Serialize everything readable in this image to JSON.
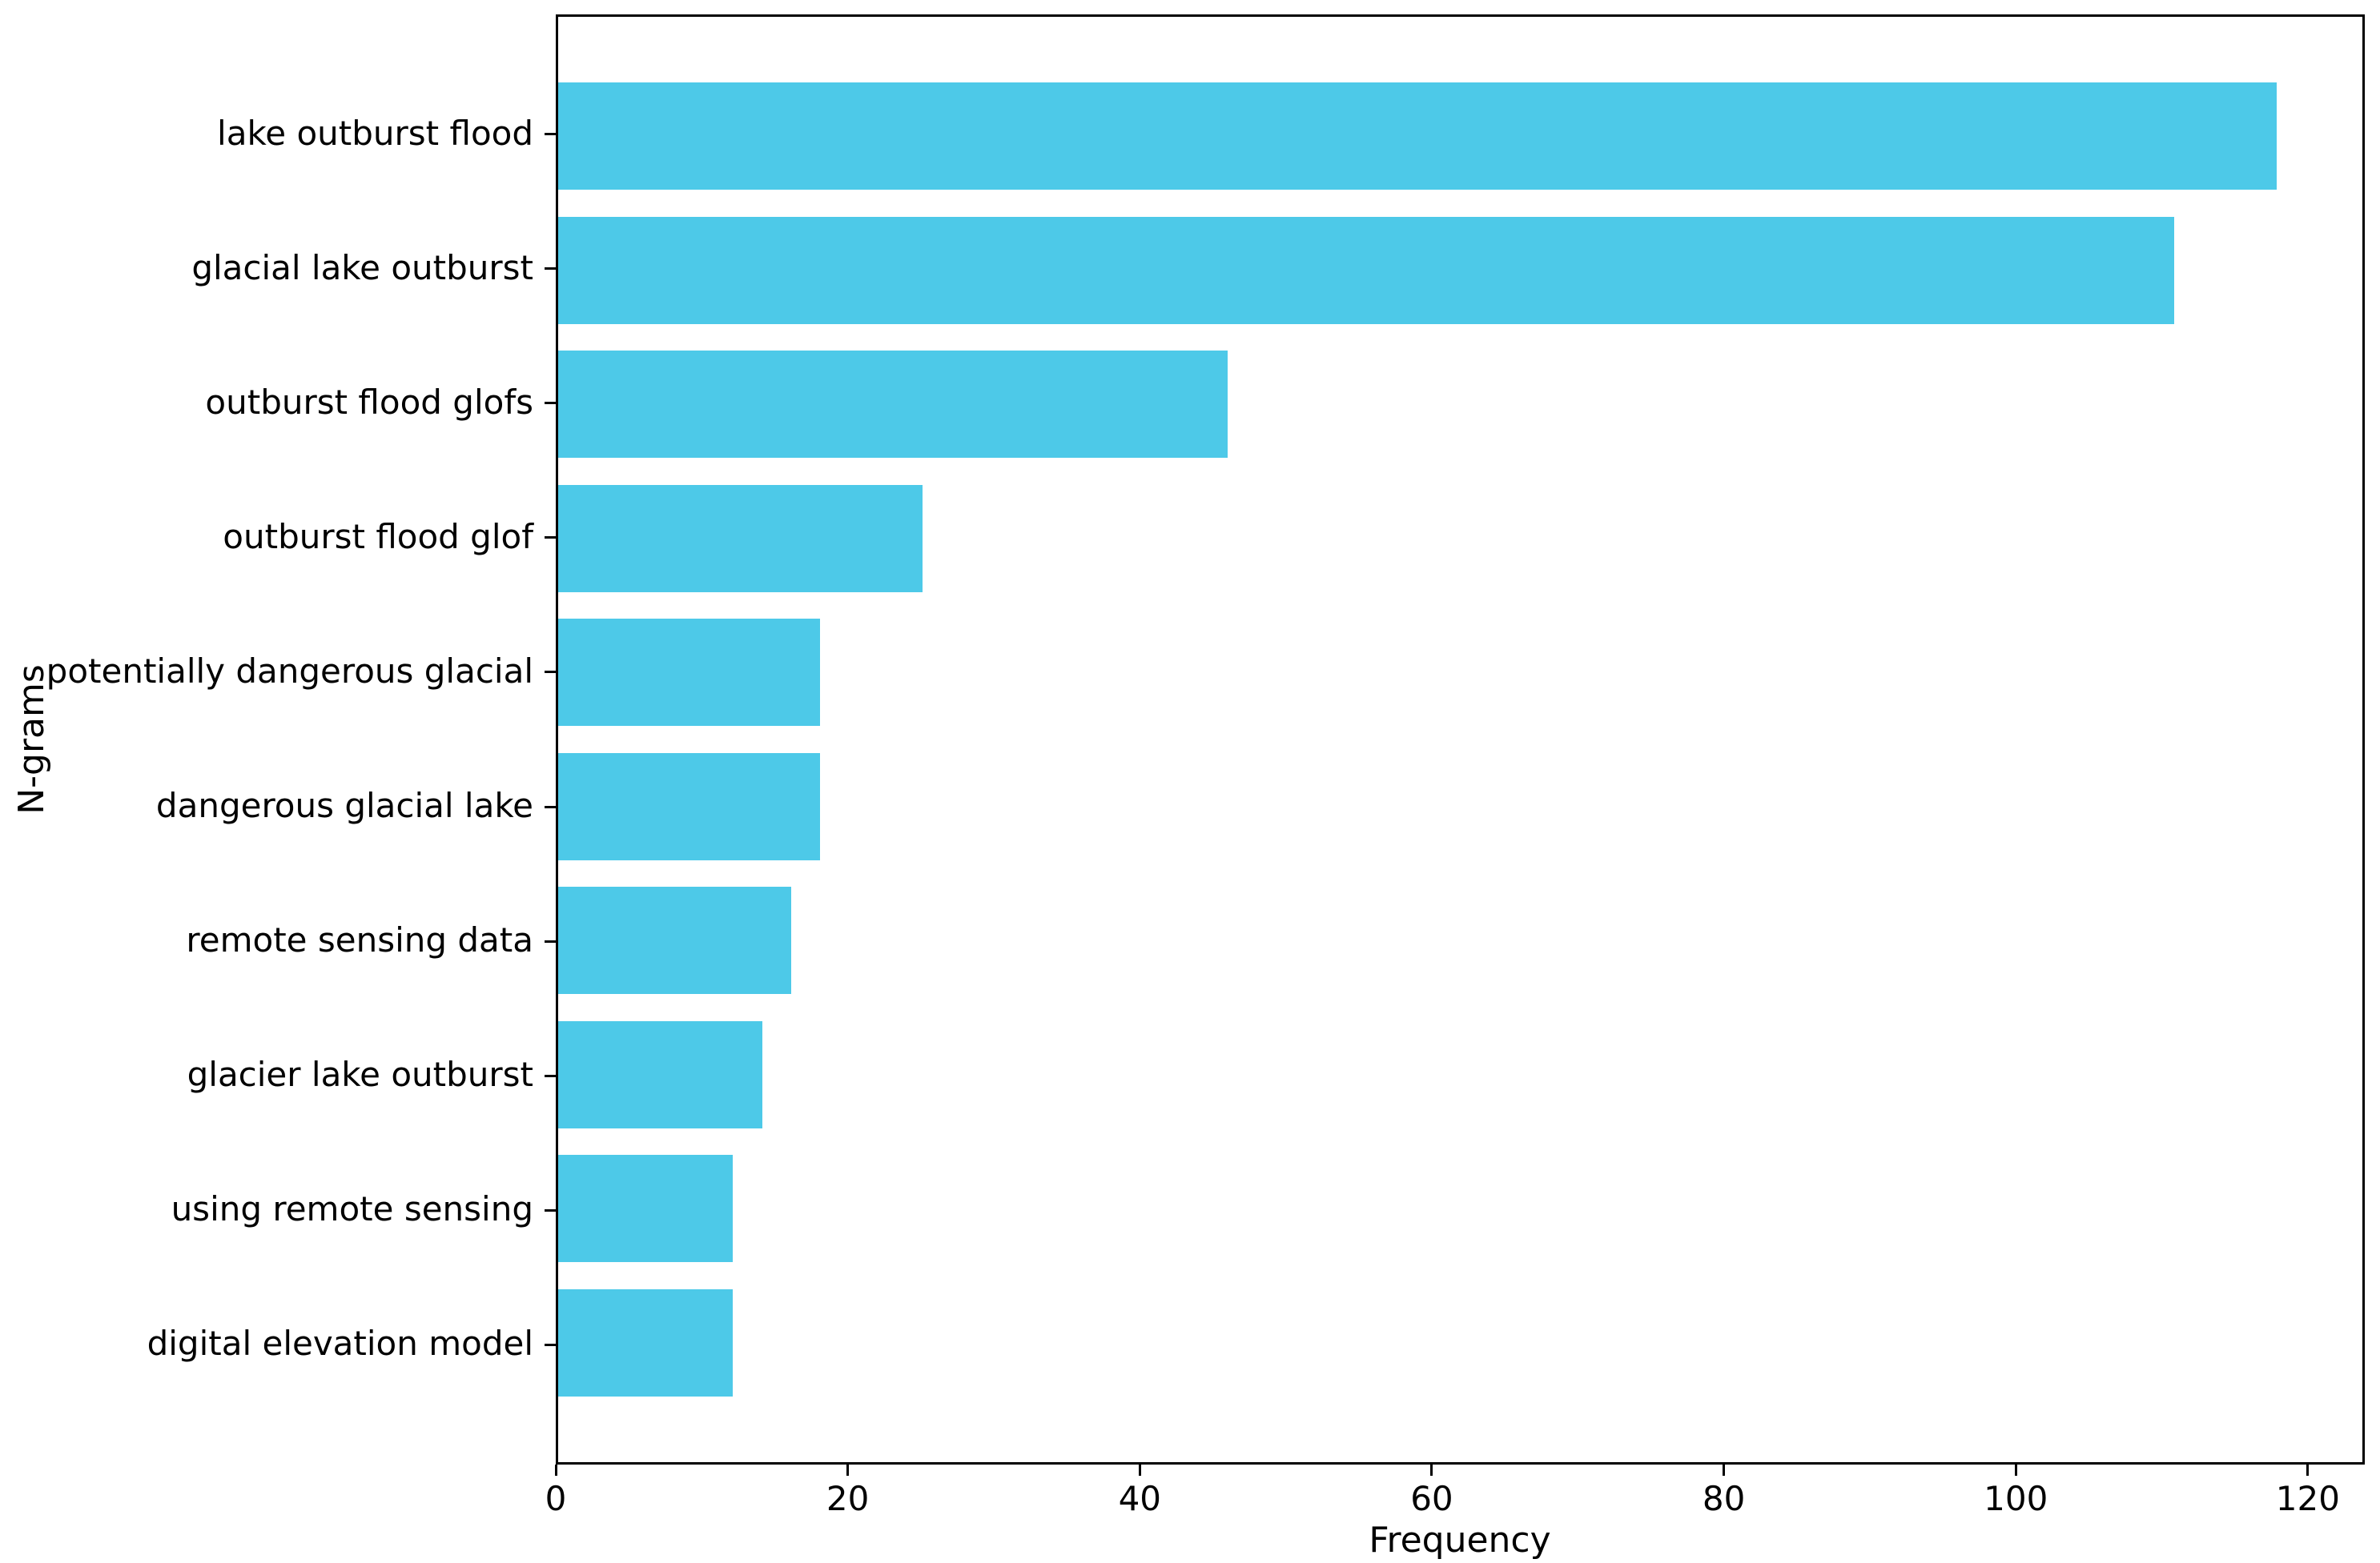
{
  "chart_data": {
    "type": "bar",
    "orientation": "horizontal",
    "title": "",
    "xlabel": "Frequency",
    "ylabel": "N-grams",
    "categories": [
      "lake outburst flood",
      "glacial lake outburst",
      "outburst flood glofs",
      "outburst flood glof",
      "potentially dangerous glacial",
      "dangerous glacial lake",
      "remote sensing data",
      "glacier lake outburst",
      "using remote sensing",
      "digital elevation model"
    ],
    "values": [
      118,
      111,
      46,
      25,
      18,
      18,
      16,
      14,
      12,
      12
    ],
    "xticks": [
      0,
      20,
      40,
      60,
      80,
      100,
      120
    ],
    "xlim": [
      0,
      123.9
    ],
    "bar_color": "#4dc9e8",
    "axis_color": "#000000",
    "grid": false,
    "legend": false
  }
}
